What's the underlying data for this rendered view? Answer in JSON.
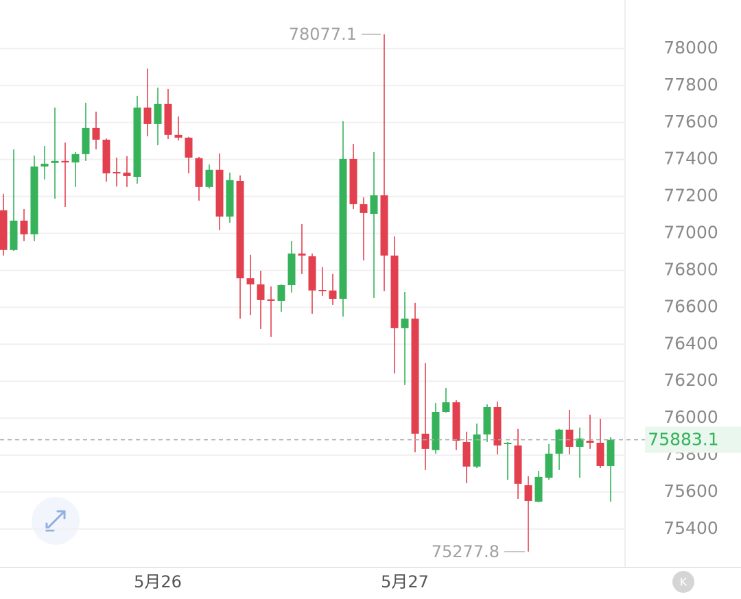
{
  "chart_data": {
    "type": "candlestick",
    "x": [
      null,
      null,
      null,
      null,
      null,
      null,
      null,
      null,
      null,
      null,
      null,
      null,
      null,
      null,
      null,
      "5月26",
      null,
      null,
      null,
      null,
      null,
      null,
      null,
      null,
      null,
      null,
      null,
      null,
      null,
      null,
      null,
      null,
      null,
      null,
      null,
      null,
      null,
      null,
      null,
      "5月27",
      null,
      null,
      null,
      null,
      null,
      null,
      null,
      null,
      null,
      null,
      null,
      null,
      null,
      null,
      null,
      null,
      null,
      null,
      null,
      null
    ],
    "open": [
      77125,
      76910,
      77069,
      76995,
      77362,
      77381,
      77392,
      77384,
      77429,
      77570,
      77507,
      77332,
      77329,
      77306,
      77681,
      77592,
      77700,
      77533,
      77518,
      77407,
      77251,
      77344,
      77091,
      77284,
      76757,
      76724,
      76643,
      76635,
      76720,
      76891,
      76876,
      76694,
      76691,
      76646,
      77403,
      77158,
      77106,
      77206,
      76880,
      76487,
      76539,
      75916,
      75827,
      76034,
      76086,
      75871,
      75738,
      75912,
      76060,
      75860,
      75852,
      75637,
      75548,
      75678,
      75808,
      75938,
      75845,
      75878,
      75867,
      75741
    ],
    "high": [
      77214,
      77455,
      77132,
      77421,
      77473,
      77681,
      77492,
      77440,
      77707,
      77659,
      77514,
      77410,
      77418,
      77744,
      77892,
      77789,
      77781,
      77633,
      77522,
      77414,
      77373,
      77433,
      77329,
      77314,
      76884,
      76798,
      76713,
      76724,
      76958,
      77050,
      76891,
      76817,
      76780,
      77607,
      77484,
      77195,
      77440,
      78077.1,
      76984,
      76683,
      76624,
      76298,
      76082,
      76164,
      76097,
      75927,
      75971,
      76075,
      76090,
      75871,
      75942,
      75686,
      75715,
      75860,
      75942,
      76045,
      75949,
      76019,
      75997,
      75897
    ],
    "low": [
      76880,
      76905,
      76958,
      76958,
      77292,
      77188,
      77143,
      77251,
      77392,
      77455,
      77280,
      77254,
      77251,
      77269,
      77525,
      77477,
      77510,
      77503,
      77325,
      77177,
      77243,
      77017,
      77058,
      76539,
      76557,
      76483,
      76439,
      76576,
      76680,
      76780,
      76565,
      76661,
      76613,
      76550,
      77132,
      76854,
      76650,
      76687,
      76242,
      76179,
      75815,
      75719,
      75808,
      76030,
      75827,
      75648,
      75730,
      75871,
      75804,
      75667,
      75563,
      75277.8,
      75545,
      75667,
      75719,
      75804,
      75678,
      75834,
      75730,
      75548
    ],
    "close": [
      76910,
      77069,
      76995,
      77362,
      77377,
      77392,
      77384,
      77429,
      77570,
      77507,
      77325,
      77325,
      77310,
      77681,
      77592,
      77700,
      77533,
      77518,
      77410,
      77251,
      77344,
      77091,
      77288,
      76757,
      76724,
      76639,
      76635,
      76720,
      76891,
      76880,
      76691,
      76687,
      76646,
      77403,
      77158,
      77110,
      77206,
      76880,
      76487,
      76539,
      75916,
      75834,
      76034,
      76086,
      75878,
      75738,
      75912,
      76060,
      75852,
      75867,
      75645,
      75552,
      75682,
      75808,
      75938,
      75845,
      75890,
      75867,
      75741,
      75883.1
    ],
    "up_color": "#35b25a",
    "down_color": "#e2404e",
    "ylim": [
      75192,
      78263
    ],
    "yticks": [
      75400,
      75600,
      75800,
      76000,
      76200,
      76400,
      76600,
      76800,
      77000,
      77200,
      77400,
      77600,
      77800,
      78000
    ],
    "grid": true
  },
  "ui": {
    "badge": "K"
  }
}
